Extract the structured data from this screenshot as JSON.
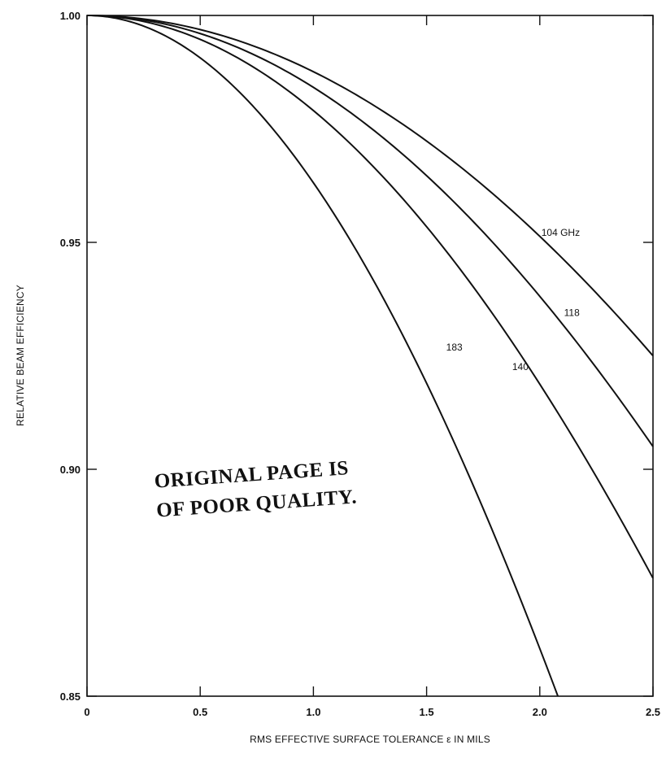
{
  "chart_data": {
    "type": "line",
    "xlabel": "RMS EFFECTIVE SURFACE TOLERANCE ε IN MILS",
    "ylabel": "RELATIVE BEAM EFFICIENCY",
    "xlim": [
      0,
      2.5
    ],
    "ylim": [
      0.85,
      1.0
    ],
    "x_ticks": [
      0,
      0.5,
      1.0,
      1.5,
      2.0,
      2.5
    ],
    "x_tick_labels": [
      "0",
      "0.5",
      "1.0",
      "1.5",
      "2.0",
      "2.5"
    ],
    "y_ticks": [
      0.85,
      0.9,
      0.95,
      1.0
    ],
    "y_tick_labels": [
      "0.85",
      "0.90",
      "0.95",
      "1.00"
    ],
    "grid": false,
    "series": [
      {
        "name": "104 GHz",
        "x": [
          0,
          2.5
        ],
        "y": [
          1.0,
          0.925
        ]
      },
      {
        "name": "118",
        "x": [
          0,
          2.5
        ],
        "y": [
          1.0,
          0.905
        ]
      },
      {
        "name": "140",
        "x": [
          0,
          2.5
        ],
        "y": [
          1.0,
          0.876
        ]
      },
      {
        "name": "183",
        "x": [
          0,
          2.08
        ],
        "y": [
          1.0,
          0.85
        ]
      }
    ],
    "annotations": [
      "ORIGINAL PAGE IS",
      "OF POOR QUALITY."
    ]
  }
}
